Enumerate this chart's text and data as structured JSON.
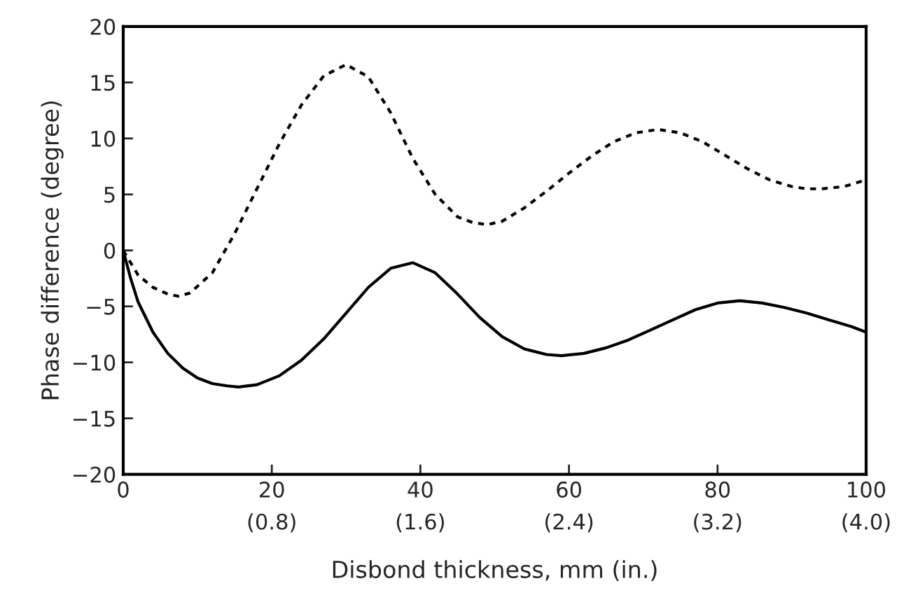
{
  "chart_data": {
    "type": "line",
    "xlabel": "Disbond thickness, mm (in.)",
    "ylabel": "Phase difference (degree)",
    "xlim": [
      0,
      100
    ],
    "xticks": [
      0,
      20,
      40,
      60,
      80,
      100
    ],
    "x2lim": [
      0,
      4.0
    ],
    "x2ticks": [
      {
        "value": 0.8,
        "label": "(0.8)"
      },
      {
        "value": 1.6,
        "label": "(1.6)"
      },
      {
        "value": 2.4,
        "label": "(2.4)"
      },
      {
        "value": 3.2,
        "label": "(3.2)"
      },
      {
        "value": 4.0,
        "label": "(4.0)"
      }
    ],
    "ylim": [
      -20,
      20
    ],
    "yticks": [
      {
        "value": -20,
        "label": "−20"
      },
      {
        "value": -15,
        "label": "−15"
      },
      {
        "value": -10,
        "label": "−10"
      },
      {
        "value": -5,
        "label": "−5"
      },
      0,
      5,
      10,
      15,
      20
    ],
    "series": [
      {
        "color": "#000000",
        "line_style": "dotted",
        "x": [
          0,
          2,
          4,
          6,
          7.5,
          9,
          12,
          15,
          18,
          21,
          24,
          27,
          30,
          33,
          36,
          39,
          42,
          45,
          47,
          49,
          51,
          54,
          57,
          60,
          63,
          66,
          69,
          72,
          75,
          78,
          81,
          84,
          87,
          90,
          92,
          94,
          97,
          100
        ],
        "values": [
          0,
          -2.2,
          -3.3,
          -3.9,
          -4.1,
          -3.8,
          -2.0,
          1.5,
          5.5,
          9.5,
          13.0,
          15.6,
          16.6,
          15.5,
          12.3,
          8.2,
          5.0,
          3.0,
          2.5,
          2.3,
          2.6,
          3.8,
          5.3,
          6.9,
          8.4,
          9.7,
          10.5,
          10.8,
          10.5,
          9.7,
          8.5,
          7.3,
          6.3,
          5.7,
          5.5,
          5.5,
          5.7,
          6.3
        ]
      },
      {
        "color": "#000000",
        "line_style": "solid",
        "x": [
          0,
          1,
          2,
          4,
          6,
          8,
          10,
          12,
          14,
          15.5,
          18,
          21,
          24,
          27,
          30,
          33,
          36,
          39,
          42,
          45,
          48,
          51,
          54,
          57,
          59,
          62,
          65,
          68,
          71,
          74,
          77,
          80,
          83,
          86,
          89,
          92,
          95,
          98,
          100
        ],
        "values": [
          0,
          -2.5,
          -4.6,
          -7.3,
          -9.2,
          -10.5,
          -11.4,
          -11.9,
          -12.1,
          -12.2,
          -12.0,
          -11.2,
          -9.8,
          -7.9,
          -5.6,
          -3.3,
          -1.6,
          -1.1,
          -2.0,
          -3.9,
          -6.0,
          -7.7,
          -8.8,
          -9.3,
          -9.4,
          -9.2,
          -8.7,
          -8.0,
          -7.1,
          -6.2,
          -5.3,
          -4.7,
          -4.5,
          -4.7,
          -5.1,
          -5.6,
          -6.2,
          -6.8,
          -7.3
        ]
      }
    ]
  }
}
